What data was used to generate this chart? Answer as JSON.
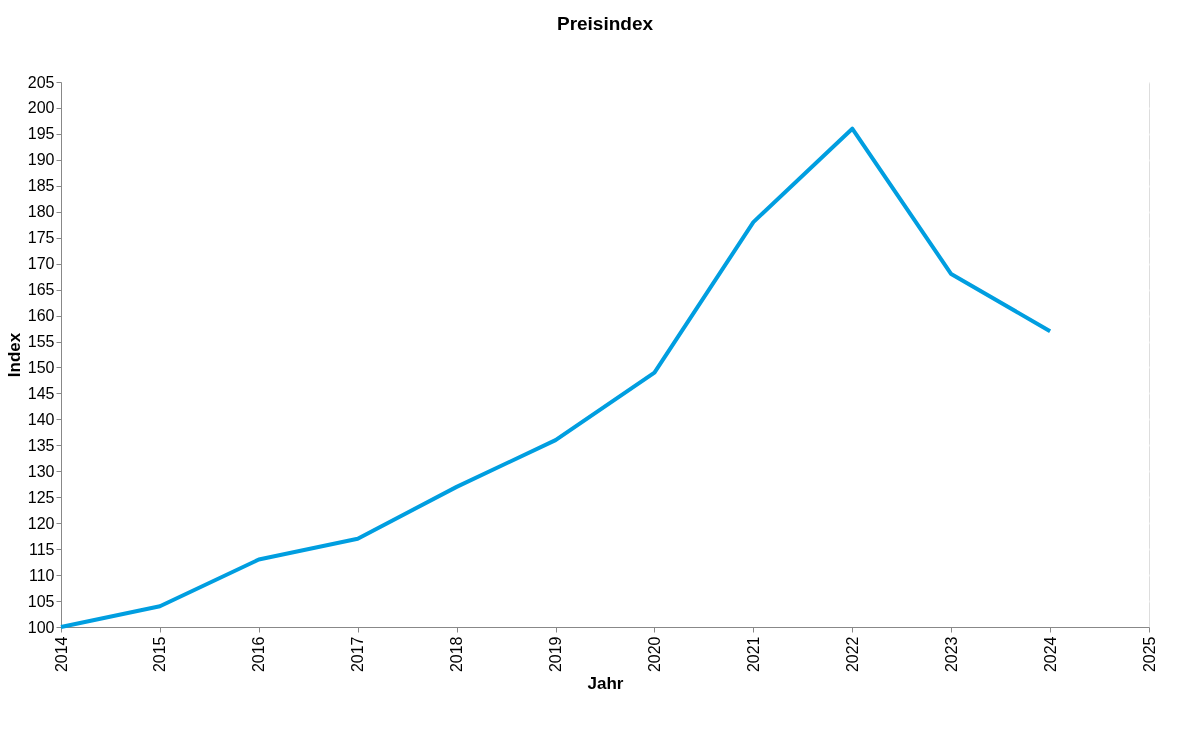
{
  "chart_data": {
    "type": "line",
    "title": "Preisindex",
    "xlabel": "Jahr",
    "ylabel": "Index",
    "x": [
      2014,
      2015,
      2016,
      2017,
      2018,
      2019,
      2020,
      2021,
      2022,
      2023,
      2024
    ],
    "series": [
      {
        "color": "#009ee0",
        "values": [
          100,
          104,
          113,
          117,
          127,
          136,
          149,
          178,
          196,
          168,
          157
        ]
      }
    ],
    "xlim": [
      2014,
      2025
    ],
    "xticks": [
      2014,
      2015,
      2016,
      2017,
      2018,
      2019,
      2020,
      2021,
      2022,
      2023,
      2024,
      2025
    ],
    "ylim": [
      100,
      205
    ],
    "yticks": [
      100,
      105,
      110,
      115,
      120,
      125,
      130,
      135,
      140,
      145,
      150,
      155,
      160,
      165,
      170,
      175,
      180,
      185,
      190,
      195,
      200,
      205
    ],
    "grid": "y",
    "legend": false,
    "marker": "none",
    "line_style": "solid"
  }
}
